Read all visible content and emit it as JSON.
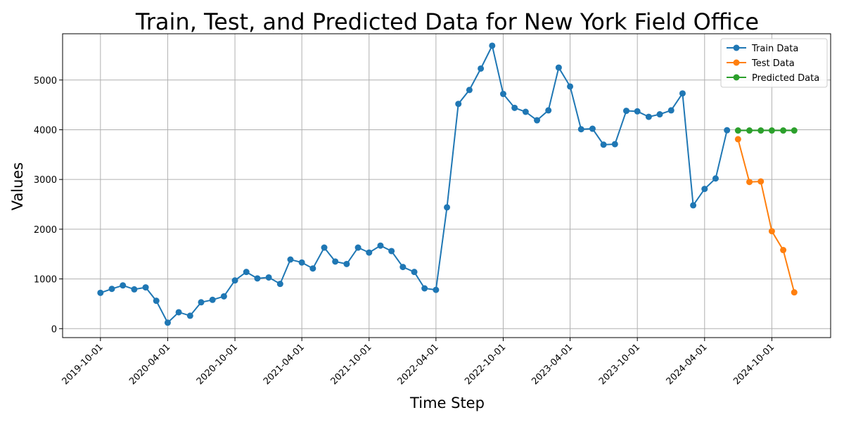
{
  "chart_data": {
    "type": "line",
    "title": "Train, Test, and Predicted Data for New York Field Office",
    "xlabel": "Time Step",
    "ylabel": "Values",
    "x_tick_labels": [
      "2019-10-01",
      "2020-04-01",
      "2020-10-01",
      "2021-04-01",
      "2021-10-01",
      "2022-04-01",
      "2022-10-01",
      "2023-04-01",
      "2023-10-01",
      "2024-04-01",
      "2024-10-01"
    ],
    "y_ticks": [
      0,
      1000,
      2000,
      3000,
      4000,
      5000
    ],
    "y_tick_labels": [
      "0",
      "1000",
      "2000",
      "3000",
      "4000",
      "5000"
    ],
    "ylim": [
      -180,
      5930
    ],
    "xlim": [
      "2019-06-20",
      "2025-03-10"
    ],
    "grid": true,
    "legend_position": "top-right",
    "series": [
      {
        "name": "Train Data",
        "color": "#1f77b4",
        "x": [
          "2019-10-01",
          "2019-11-01",
          "2019-12-01",
          "2020-01-01",
          "2020-02-01",
          "2020-03-01",
          "2020-04-01",
          "2020-05-01",
          "2020-06-01",
          "2020-07-01",
          "2020-08-01",
          "2020-09-01",
          "2020-10-01",
          "2020-11-01",
          "2020-12-01",
          "2021-01-01",
          "2021-02-01",
          "2021-03-01",
          "2021-04-01",
          "2021-05-01",
          "2021-06-01",
          "2021-07-01",
          "2021-08-01",
          "2021-09-01",
          "2021-10-01",
          "2021-11-01",
          "2021-12-01",
          "2022-01-01",
          "2022-02-01",
          "2022-03-01",
          "2022-04-01",
          "2022-05-01",
          "2022-06-01",
          "2022-07-01",
          "2022-08-01",
          "2022-09-01",
          "2022-10-01",
          "2022-11-01",
          "2022-12-01",
          "2023-01-01",
          "2023-02-01",
          "2023-03-01",
          "2023-04-01",
          "2023-05-01",
          "2023-06-01",
          "2023-07-01",
          "2023-08-01",
          "2023-09-01",
          "2023-10-01",
          "2023-11-01",
          "2023-12-01",
          "2024-01-01",
          "2024-02-01",
          "2024-03-01",
          "2024-04-01",
          "2024-05-01",
          "2024-06-01"
        ],
        "values": [
          720,
          800,
          870,
          790,
          830,
          560,
          120,
          330,
          260,
          530,
          580,
          650,
          970,
          1140,
          1010,
          1030,
          900,
          1390,
          1330,
          1210,
          1630,
          1350,
          1300,
          1630,
          1530,
          1670,
          1560,
          1240,
          1140,
          810,
          780,
          2440,
          4520,
          4800,
          5230,
          5690,
          4720,
          4440,
          4360,
          4190,
          4390,
          5250,
          4870,
          4010,
          4020,
          3700,
          3710,
          4380,
          4370,
          4260,
          4310,
          4390,
          4730,
          2480,
          2810,
          3020,
          3990
        ]
      },
      {
        "name": "Test Data",
        "color": "#ff7f0e",
        "x": [
          "2024-07-01",
          "2024-08-01",
          "2024-09-01",
          "2024-10-01",
          "2024-11-01",
          "2024-12-01"
        ],
        "values": [
          3810,
          2950,
          2960,
          1960,
          1580,
          730
        ]
      },
      {
        "name": "Predicted Data",
        "color": "#2ca02c",
        "x": [
          "2024-07-01",
          "2024-08-01",
          "2024-09-01",
          "2024-10-01",
          "2024-11-01",
          "2024-12-01"
        ],
        "values": [
          3985,
          3985,
          3985,
          3985,
          3985,
          3985
        ]
      }
    ]
  }
}
